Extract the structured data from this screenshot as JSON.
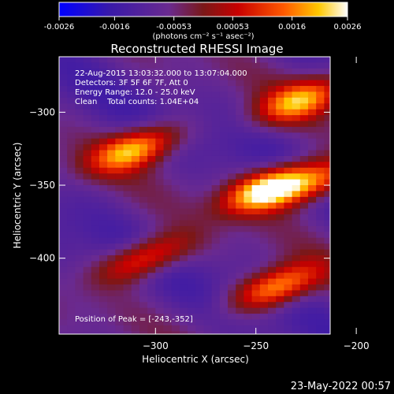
{
  "colorbar": {
    "ticks": [
      -0.0026,
      -0.0016,
      -0.00053,
      0.00053,
      0.0016,
      0.0026
    ],
    "tick_labels": [
      "-0.0026",
      "-0.0016",
      "-0.00053",
      "0.00053",
      "0.0016",
      "0.0026"
    ],
    "range": [
      -0.0026,
      0.0026
    ],
    "unit_label": "(photons cm⁻² s⁻¹ asec⁻²)"
  },
  "chart_data": {
    "type": "heatmap",
    "title": "Reconstructed RHESSI Image",
    "xlabel": "Heliocentric X (arcsec)",
    "ylabel": "Heliocentric Y (arcsec)",
    "xlim": [
      -348,
      -213
    ],
    "ylim": [
      -452,
      -262
    ],
    "xticks": [
      -300,
      -250,
      -200
    ],
    "yticks": [
      -300,
      -350,
      -400
    ],
    "colormap": "rhessi-blue-purple-red-yellow",
    "peak": [
      -243,
      -352
    ],
    "bright_sources": [
      {
        "x": -243,
        "y": -352,
        "level": 0.0026
      },
      {
        "x": -310,
        "y": -325,
        "level": 0.0018
      },
      {
        "x": -228,
        "y": -292,
        "level": 0.0015
      },
      {
        "x": -240,
        "y": -420,
        "level": 0.0017
      },
      {
        "x": -305,
        "y": -400,
        "level": 0.0012
      },
      {
        "x": -220,
        "y": -348,
        "level": 0.001
      }
    ],
    "annotations": {
      "time": "22-Aug-2015 13:03:32.000 to 13:07:04.000",
      "detectors": "Detectors: 3F 5F 6F 7F, Att 0",
      "energy": "Energy Range: 12.0 - 25.0 keV",
      "clean": "Clean    Total counts: 1.04E+04",
      "peak_text": "Position of Peak = [-243,-352]"
    }
  },
  "footer": {
    "date": "23-May-2022 00:57"
  }
}
